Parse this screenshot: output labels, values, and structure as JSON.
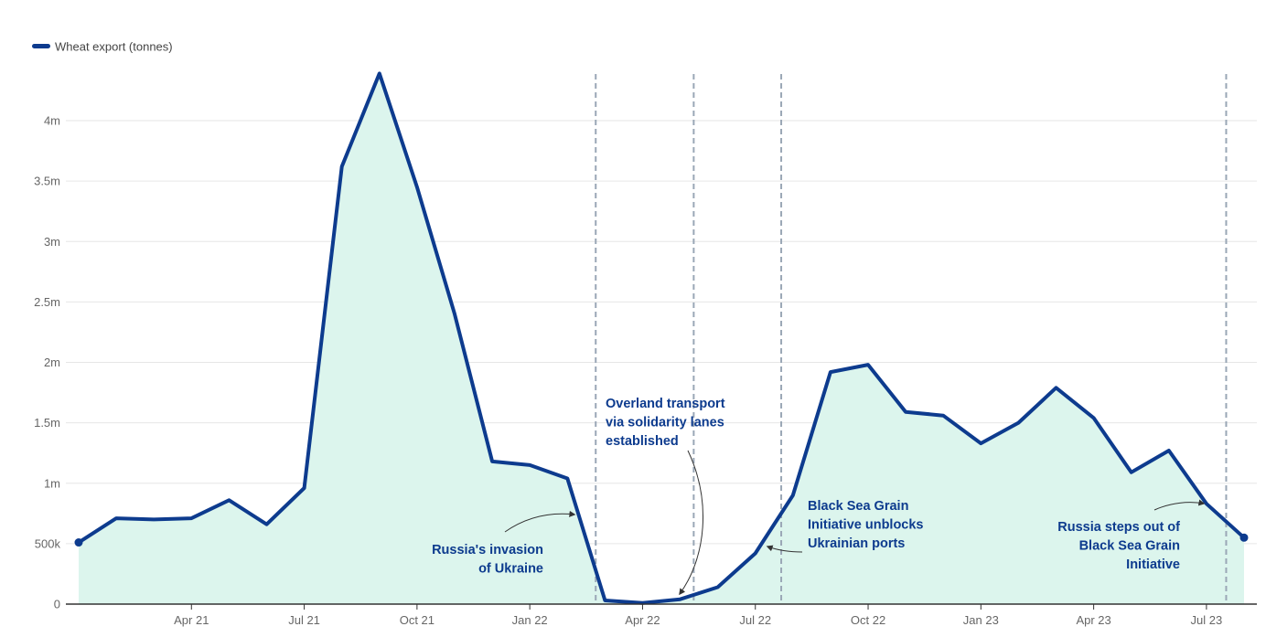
{
  "chart_data": {
    "type": "area",
    "legend": {
      "label": "Wheat export (tonnes)",
      "position": "top-left"
    },
    "series": [
      {
        "name": "Wheat export (tonnes)",
        "x": [
          "2021-01",
          "2021-02",
          "2021-03",
          "2021-04",
          "2021-05",
          "2021-06",
          "2021-07",
          "2021-08",
          "2021-09",
          "2021-10",
          "2021-11",
          "2021-12",
          "2022-01",
          "2022-02",
          "2022-03",
          "2022-04",
          "2022-05",
          "2022-06",
          "2022-07",
          "2022-08",
          "2022-09",
          "2022-10",
          "2022-11",
          "2022-12",
          "2023-01",
          "2023-02",
          "2023-03",
          "2023-04",
          "2023-05",
          "2023-06",
          "2023-07",
          "2023-08"
        ],
        "values": [
          510000,
          710000,
          700000,
          710000,
          860000,
          660000,
          960000,
          3620000,
          4390000,
          3450000,
          2400000,
          1180000,
          1150000,
          1040000,
          30000,
          10000,
          40000,
          140000,
          420000,
          900000,
          1920000,
          1980000,
          1590000,
          1560000,
          1330000,
          1500000,
          1790000,
          1540000,
          1090000,
          1270000,
          830000,
          550000
        ]
      }
    ],
    "colors": {
      "line": "#0d3b8e",
      "area": "#dcf5ed",
      "grid": "#e6e6e6",
      "event_line": "#9aa7b6",
      "annotation": "#0d3b8e"
    },
    "ylim": [
      0,
      4400000
    ],
    "y_ticks": [
      {
        "value": 0,
        "label": "0"
      },
      {
        "value": 500000,
        "label": "500k"
      },
      {
        "value": 1000000,
        "label": "1m"
      },
      {
        "value": 1500000,
        "label": "1.5m"
      },
      {
        "value": 2000000,
        "label": "2m"
      },
      {
        "value": 2500000,
        "label": "2.5m"
      },
      {
        "value": 3000000,
        "label": "3m"
      },
      {
        "value": 3500000,
        "label": "3.5m"
      },
      {
        "value": 4000000,
        "label": "4m"
      }
    ],
    "x_ticks": [
      {
        "value": "2021-04",
        "label": "Apr 21"
      },
      {
        "value": "2021-07",
        "label": "Jul 21"
      },
      {
        "value": "2021-10",
        "label": "Oct 21"
      },
      {
        "value": "2022-01",
        "label": "Jan 22"
      },
      {
        "value": "2022-04",
        "label": "Apr 22"
      },
      {
        "value": "2022-07",
        "label": "Jul 22"
      },
      {
        "value": "2022-10",
        "label": "Oct 22"
      },
      {
        "value": "2023-01",
        "label": "Jan 23"
      },
      {
        "value": "2023-04",
        "label": "Apr 23"
      },
      {
        "value": "2023-07",
        "label": "Jul 23"
      }
    ],
    "grid": true,
    "events": [
      {
        "date": "2022-02-24",
        "label_lines": [
          "Russia's invasion",
          "of Ukraine"
        ]
      },
      {
        "date": "2022-05-12",
        "label_lines": [
          "Overland transport",
          "via solidarity lanes",
          "established"
        ]
      },
      {
        "date": "2022-07-22",
        "label_lines": [
          "Black Sea Grain",
          "Initiative unblocks",
          "Ukrainian ports"
        ]
      },
      {
        "date": "2023-07-17",
        "label_lines": [
          "Russia steps out of",
          "Black Sea Grain",
          "Initiative"
        ]
      }
    ]
  }
}
